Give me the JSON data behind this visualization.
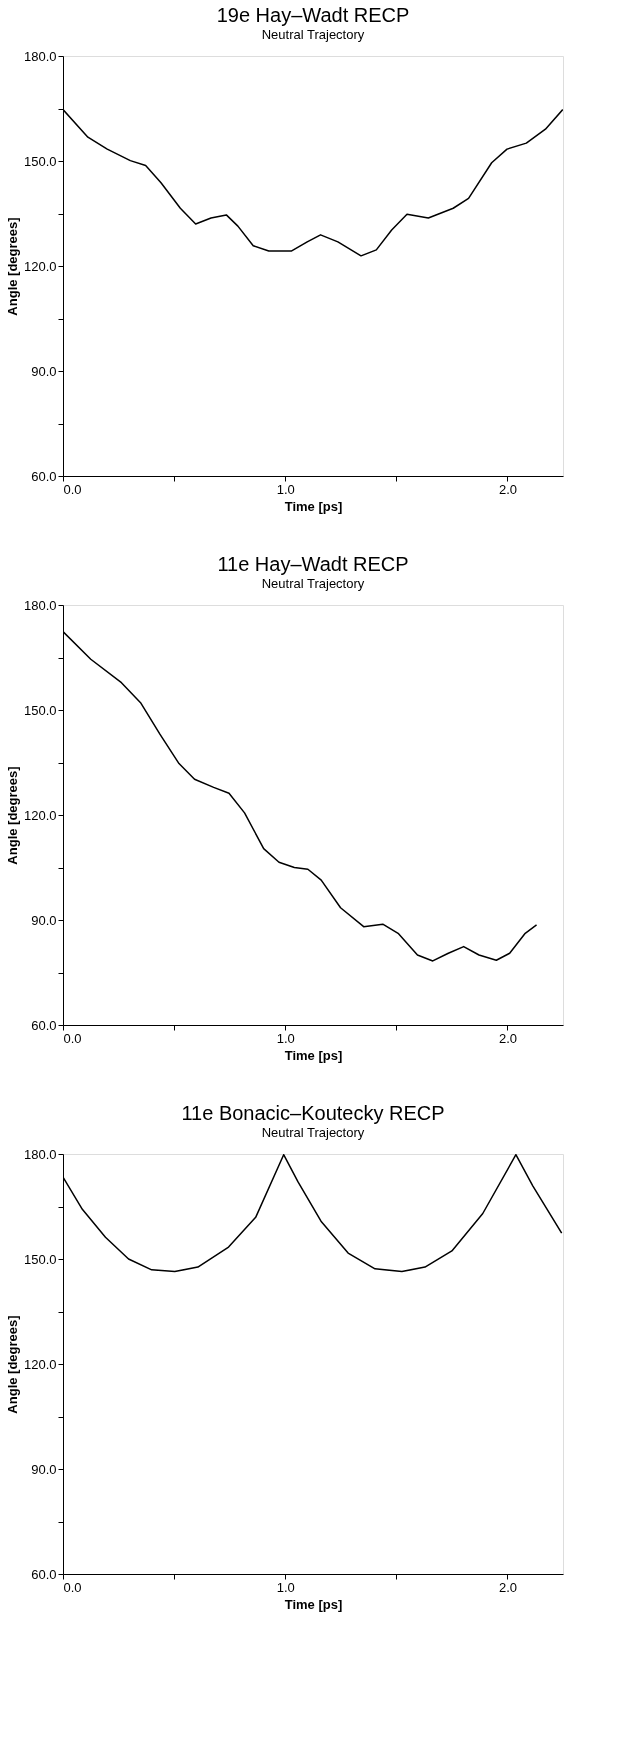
{
  "chart_data": [
    {
      "type": "line",
      "title": "19e Hay–Wadt RECP",
      "subtitle": "Neutral Trajectory",
      "xlabel": "Time [ps]",
      "ylabel": "Angle [degrees]",
      "x": [
        0,
        0.112,
        0.199,
        0.303,
        0.372,
        0.441,
        0.528,
        0.597,
        0.666,
        0.735,
        0.787,
        0.856,
        0.926,
        1.029,
        1.099,
        1.159,
        1.237,
        1.341,
        1.41,
        1.479,
        1.548,
        1.644,
        1.756,
        1.825,
        1.929,
        1.998,
        2.085,
        2.171,
        2.249
      ],
      "series": [
        {
          "color": "#000000",
          "values": [
            164.7,
            156.8,
            153.4,
            150.1,
            148.7,
            143.8,
            136.5,
            132.0,
            133.7,
            134.6,
            131.4,
            125.8,
            124.3,
            124.3,
            126.9,
            128.9,
            126.9,
            122.9,
            124.6,
            130.3,
            134.8,
            133.7,
            136.5,
            139.3,
            149.5,
            153.4,
            155.1,
            159.1,
            164.7
          ]
        }
      ],
      "xlim": [
        0,
        2.25
      ],
      "ylim": [
        60,
        180
      ],
      "xticks": [
        {
          "value": 0,
          "label": "0.0"
        },
        {
          "value": 0.5,
          "label": null
        },
        {
          "value": 1,
          "label": "1.0"
        },
        {
          "value": 1.5,
          "label": null
        },
        {
          "value": 2,
          "label": "2.0"
        }
      ],
      "yticks": [
        {
          "value": 60,
          "label": "60.0"
        },
        {
          "value": 75,
          "label": null
        },
        {
          "value": 90,
          "label": "90.0"
        },
        {
          "value": 105,
          "label": null
        },
        {
          "value": 120,
          "label": "120.0"
        },
        {
          "value": 135,
          "label": null
        },
        {
          "value": 150,
          "label": "150.0"
        },
        {
          "value": 165,
          "label": null
        },
        {
          "value": 180,
          "label": "180.0"
        }
      ]
    },
    {
      "type": "line",
      "title": "11e Hay–Wadt RECP",
      "subtitle": "Neutral Trajectory",
      "xlabel": "Time [ps]",
      "ylabel": "Angle [degrees]",
      "x": [
        0,
        0.125,
        0.263,
        0.349,
        0.436,
        0.522,
        0.592,
        0.678,
        0.747,
        0.817,
        0.903,
        0.972,
        1.041,
        1.102,
        1.162,
        1.249,
        1.353,
        1.439,
        1.508,
        1.595,
        1.664,
        1.734,
        1.803,
        1.872,
        1.95,
        2.01,
        2.08,
        2.131
      ],
      "series": [
        {
          "color": "#000000",
          "values": [
            172.4,
            164.5,
            157.8,
            152.1,
            143.1,
            134.7,
            130.2,
            127.9,
            126.2,
            120.6,
            110.4,
            106.5,
            105.0,
            104.5,
            101.4,
            93.5,
            88.1,
            88.8,
            86.2,
            80.0,
            78.3,
            80.5,
            82.4,
            80.0,
            78.5,
            80.5,
            86.2,
            88.6
          ]
        }
      ],
      "xlim": [
        0,
        2.25
      ],
      "ylim": [
        60,
        180
      ],
      "xticks": [
        {
          "value": 0,
          "label": "0.0"
        },
        {
          "value": 0.5,
          "label": null
        },
        {
          "value": 1,
          "label": "1.0"
        },
        {
          "value": 1.5,
          "label": null
        },
        {
          "value": 2,
          "label": "2.0"
        }
      ],
      "yticks": [
        {
          "value": 60,
          "label": "60.0"
        },
        {
          "value": 75,
          "label": null
        },
        {
          "value": 90,
          "label": "90.0"
        },
        {
          "value": 105,
          "label": null
        },
        {
          "value": 120,
          "label": "120.0"
        },
        {
          "value": 135,
          "label": null
        },
        {
          "value": 150,
          "label": "150.0"
        },
        {
          "value": 165,
          "label": null
        },
        {
          "value": 180,
          "label": "180.0"
        }
      ]
    },
    {
      "type": "line",
      "title": "11e Bonacic–Koutecky RECP",
      "subtitle": "Neutral Trajectory",
      "xlabel": "Time [ps]",
      "ylabel": "Angle [degrees]",
      "x": [
        0,
        0.087,
        0.191,
        0.295,
        0.399,
        0.503,
        0.607,
        0.745,
        0.867,
        0.993,
        1.057,
        1.161,
        1.283,
        1.404,
        1.525,
        1.629,
        1.75,
        1.889,
        2.038,
        2.114,
        2.244
      ],
      "series": [
        {
          "color": "#000000",
          "values": [
            173.4,
            164.2,
            156.2,
            150.0,
            146.9,
            146.4,
            147.7,
            153.4,
            161.9,
            179.8,
            172.1,
            160.8,
            151.7,
            147.2,
            146.4,
            147.7,
            152.3,
            163.0,
            179.8,
            170.9,
            157.4
          ]
        }
      ],
      "xlim": [
        0,
        2.25
      ],
      "ylim": [
        60,
        180
      ],
      "xticks": [
        {
          "value": 0,
          "label": "0.0"
        },
        {
          "value": 0.5,
          "label": null
        },
        {
          "value": 1,
          "label": "1.0"
        },
        {
          "value": 1.5,
          "label": null
        },
        {
          "value": 2,
          "label": "2.0"
        }
      ],
      "yticks": [
        {
          "value": 60,
          "label": "60.0"
        },
        {
          "value": 75,
          "label": null
        },
        {
          "value": 90,
          "label": "90.0"
        },
        {
          "value": 105,
          "label": null
        },
        {
          "value": 120,
          "label": "120.0"
        },
        {
          "value": 135,
          "label": null
        },
        {
          "value": 150,
          "label": "150.0"
        },
        {
          "value": 165,
          "label": null
        },
        {
          "value": 180,
          "label": "180.0"
        }
      ]
    }
  ]
}
